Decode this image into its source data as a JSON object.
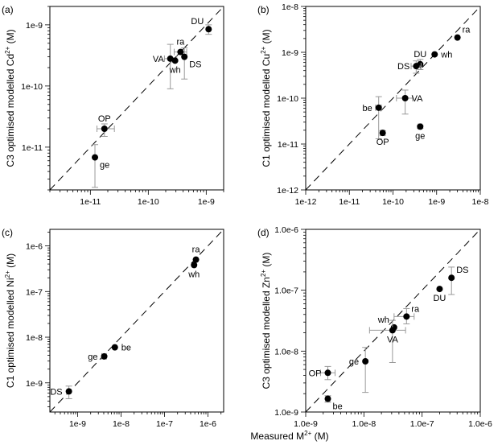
{
  "figure": {
    "xlabel": "Measured M",
    "xlabel_sup": "2+",
    "xlabel_unit": " (M)"
  },
  "chart_data": [
    {
      "type": "scatter",
      "panel_label": "(a)",
      "ylabel": "C3 optimised modelled Cd",
      "ylabel_ion": "2+",
      "ylabel_unit": " (M)",
      "log_x": true,
      "log_y": true,
      "xlim": [
        2e-12,
        2e-09
      ],
      "ylim": [
        2e-12,
        2e-09
      ],
      "xticks": [
        1e-11,
        1e-10,
        1e-09
      ],
      "xtick_labels": [
        "1e-11",
        "1e-10",
        "1e-9"
      ],
      "yticks": [
        1e-11,
        1e-10,
        1e-09
      ],
      "ytick_labels": [
        "1e-11",
        "1e-10",
        "1e-9"
      ],
      "identity_line": true,
      "points": [
        {
          "label": "DU",
          "x": 1.1e-09,
          "y": 8.5e-10,
          "yerr": [
            7e-10,
            1e-09
          ],
          "label_pos": "nw"
        },
        {
          "label": "ra",
          "x": 3.6e-10,
          "y": 3.6e-10,
          "xerr": [
            2.8e-10,
            4.6e-10
          ],
          "label_pos": "n"
        },
        {
          "label": "VA",
          "x": 2.4e-10,
          "y": 2.8e-10,
          "yerr": [
            9e-11,
            4.8e-10
          ],
          "xerr": [
            1.9e-10,
            3.1e-10
          ],
          "label_pos": "w"
        },
        {
          "label": "wh",
          "x": 2.9e-10,
          "y": 2.6e-10,
          "label_pos": "s"
        },
        {
          "label": "DS",
          "x": 4.2e-10,
          "y": 3e-10,
          "yerr": [
            1.3e-10,
            4.2e-10
          ],
          "label_pos": "se"
        },
        {
          "label": "OP",
          "x": 1.75e-11,
          "y": 2e-11,
          "xerr": [
            1.3e-11,
            2.6e-11
          ],
          "yerr": [
            1.5e-11,
            2.4e-11
          ],
          "label_pos": "n"
        },
        {
          "label": "ge",
          "x": 1.2e-11,
          "y": 6.8e-12,
          "yerr": [
            2.2e-12,
            1.1e-11
          ],
          "label_pos": "se"
        }
      ]
    },
    {
      "type": "scatter",
      "panel_label": "(b)",
      "ylabel": "C1 optimised modelled Cu",
      "ylabel_ion": "2+",
      "ylabel_unit": " (M)",
      "log_x": true,
      "log_y": true,
      "xlim": [
        1e-12,
        1e-08
      ],
      "ylim": [
        1e-12,
        1e-08
      ],
      "xticks": [
        1e-12,
        1e-11,
        1e-10,
        1e-09,
        1e-08
      ],
      "xtick_labels": [
        "1e-12",
        "1e-11",
        "1e-10",
        "1e-9",
        "1e-8"
      ],
      "yticks": [
        1e-12,
        1e-11,
        1e-10,
        1e-09,
        1e-08
      ],
      "ytick_labels": [
        "1e-12",
        "1e-11",
        "1e-10",
        "1e-9",
        "1e-8"
      ],
      "identity_line": true,
      "points": [
        {
          "label": "ra",
          "x": 3e-09,
          "y": 2.1e-09,
          "label_pos": "ne"
        },
        {
          "label": "wh",
          "x": 9e-10,
          "y": 9e-10,
          "label_pos": "e"
        },
        {
          "label": "DU",
          "x": 4.2e-10,
          "y": 5.5e-10,
          "yerr": [
            4.2e-10,
            7e-10
          ],
          "label_pos": "n"
        },
        {
          "label": "DS",
          "x": 3.4e-10,
          "y": 5e-10,
          "xerr": [
            2.6e-10,
            4.4e-10
          ],
          "yerr": [
            3.5e-10,
            6.5e-10
          ],
          "label_pos": "w"
        },
        {
          "label": "VA",
          "x": 1.9e-10,
          "y": 1e-10,
          "xerr": [
            1.2e-10,
            2.8e-10
          ],
          "yerr": [
            4.5e-11,
            1.5e-10
          ],
          "label_pos": "e"
        },
        {
          "label": "be",
          "x": 4.7e-11,
          "y": 6.2e-11,
          "xerr": [
            4e-11,
            5.4e-11
          ],
          "yerr": [
            1.3e-11,
            1.08e-10
          ],
          "label_pos": "w"
        },
        {
          "label": "OP",
          "x": 5.8e-11,
          "y": 1.75e-11,
          "xerr": [
            5.2e-11,
            6.4e-11
          ],
          "yerr": [
            1.55e-11,
            1.95e-11
          ],
          "label_pos": "s"
        },
        {
          "label": "ge",
          "x": 4.2e-10,
          "y": 2.4e-11,
          "xerr": [
            3.8e-10,
            4.6e-10
          ],
          "yerr": [
            2.2e-11,
            2.6e-11
          ],
          "label_pos": "s"
        }
      ]
    },
    {
      "type": "scatter",
      "panel_label": "(c)",
      "ylabel": "C1 optimised modelled Ni",
      "ylabel_ion": "2+",
      "ylabel_unit": " (M)",
      "log_x": true,
      "log_y": true,
      "xlim": [
        2.3e-10,
        2.3e-06
      ],
      "ylim": [
        2.3e-10,
        2.3e-06
      ],
      "xticks": [
        1e-09,
        1e-08,
        1e-07,
        1e-06
      ],
      "xtick_labels": [
        "1e-9",
        "1e-8",
        "1e-7",
        "1e-6"
      ],
      "yticks": [
        1e-09,
        1e-08,
        1e-07,
        1e-06
      ],
      "ytick_labels": [
        "1e-9",
        "1e-8",
        "1e-7",
        "1e-6"
      ],
      "identity_line": true,
      "points": [
        {
          "label": "ra",
          "x": 5.3e-07,
          "y": 5e-07,
          "label_pos": "n"
        },
        {
          "label": "wh",
          "x": 4.8e-07,
          "y": 3.8e-07,
          "label_pos": "s"
        },
        {
          "label": "be",
          "x": 7.2e-09,
          "y": 6e-09,
          "label_pos": "e"
        },
        {
          "label": "ge",
          "x": 4.1e-09,
          "y": 3.8e-09,
          "xerr": [
            3.6e-09,
            4.6e-09
          ],
          "label_pos": "w"
        },
        {
          "label": "DS",
          "x": 6.3e-10,
          "y": 6.5e-10,
          "yerr": [
            4.5e-10,
            8.5e-10
          ],
          "label_pos": "w"
        }
      ]
    },
    {
      "type": "scatter",
      "panel_label": "(d)",
      "ylabel": "C3 optimised modelled Zn",
      "ylabel_ion": "2+",
      "ylabel_unit": " (M)",
      "log_x": true,
      "log_y": true,
      "xlim": [
        1e-09,
        1e-06
      ],
      "ylim": [
        1e-09,
        1e-06
      ],
      "xticks": [
        1e-09,
        1e-08,
        1e-07,
        1e-06
      ],
      "xtick_labels": [
        "1.0e-9",
        "1.0e-8",
        "1.0e-7",
        "1.0e-6"
      ],
      "yticks": [
        1e-09,
        1e-08,
        1e-07,
        1e-06
      ],
      "ytick_labels": [
        "1.0e-9",
        "1.0e-8",
        "1.0e-7",
        "1.0e-6"
      ],
      "identity_line": true,
      "points": [
        {
          "label": "DS",
          "x": 3.2e-07,
          "y": 1.6e-07,
          "yerr": [
            8.5e-08,
            2.4e-07
          ],
          "label_pos": "ne"
        },
        {
          "label": "DU",
          "x": 2e-07,
          "y": 1.05e-07,
          "label_pos": "s"
        },
        {
          "label": "ra",
          "x": 5.4e-08,
          "y": 3.7e-08,
          "xerr": [
            3.3e-08,
            7.3e-08
          ],
          "yerr": [
            2.8e-08,
            5e-08
          ],
          "label_pos": "ne"
        },
        {
          "label": "wh",
          "x": 3.3e-08,
          "y": 2.45e-08,
          "label_pos": "nw"
        },
        {
          "label": "VA",
          "x": 3.1e-08,
          "y": 2.2e-08,
          "xerr": [
            1.25e-08,
            5.2e-08
          ],
          "yerr": [
            6.5e-09,
            3.2e-08
          ],
          "label_pos": "s"
        },
        {
          "label": "ge",
          "x": 1.06e-08,
          "y": 6.8e-09,
          "yerr": [
            2.1e-09,
            1.15e-08
          ],
          "label_pos": "w"
        },
        {
          "label": "OP",
          "x": 2.4e-09,
          "y": 4.4e-09,
          "xerr": [
            1.8e-09,
            3.2e-09
          ],
          "yerr": [
            3.4e-09,
            5.6e-09
          ],
          "label_pos": "w"
        },
        {
          "label": "be",
          "x": 2.4e-09,
          "y": 1.65e-09,
          "xerr": [
            2.2e-09,
            2.6e-09
          ],
          "yerr": [
            1.45e-09,
            1.85e-09
          ],
          "label_pos": "se"
        }
      ]
    }
  ]
}
